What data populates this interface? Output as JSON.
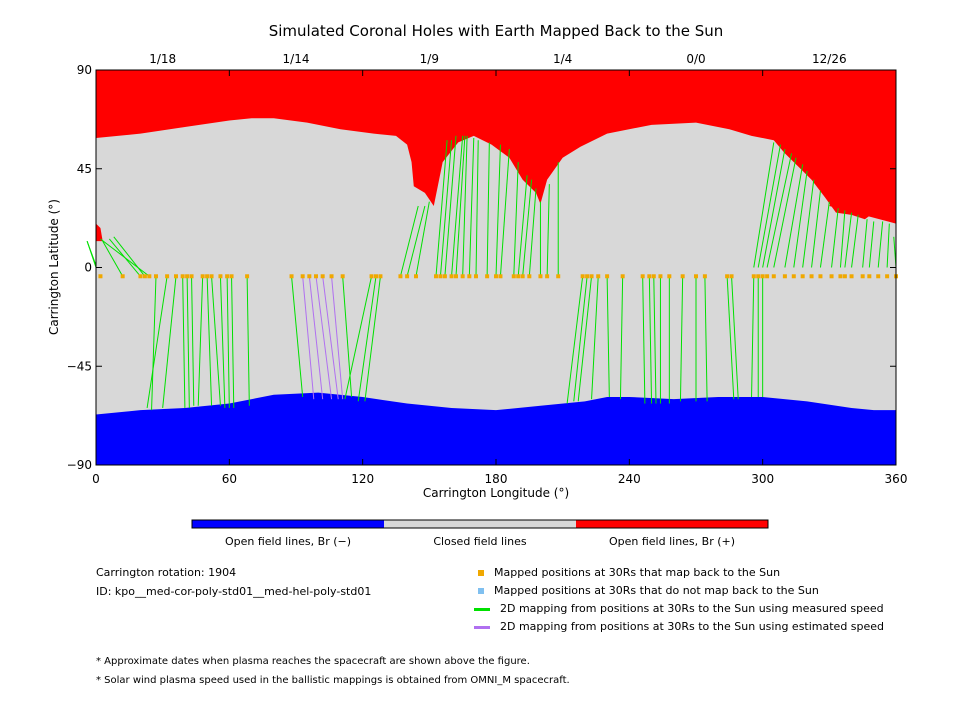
{
  "chart_data": {
    "type": "map",
    "title": "Simulated Coronal Holes with Earth Mapped Back to the Sun",
    "xlabel": "Carrington Longitude (°)",
    "ylabel": "Carrington Latitude (°)",
    "xlim": [
      0,
      360
    ],
    "ylim": [
      -90,
      90
    ],
    "xticks": [
      0,
      60,
      120,
      180,
      240,
      300,
      360
    ],
    "yticks": [
      90,
      45,
      0,
      -45,
      -90
    ],
    "top_date_ticks": [
      {
        "label": "1/18",
        "lon": 30
      },
      {
        "label": "1/14",
        "lon": 90
      },
      {
        "label": "1/9",
        "lon": 150
      },
      {
        "label": "1/4",
        "lon": 210
      },
      {
        "label": "0/0",
        "lon": 270
      },
      {
        "label": "12/26",
        "lon": 330
      }
    ],
    "north_boundary": [
      [
        0,
        59
      ],
      [
        20,
        61
      ],
      [
        40,
        64
      ],
      [
        60,
        67
      ],
      [
        70,
        68
      ],
      [
        80,
        68
      ],
      [
        95,
        66
      ],
      [
        110,
        63
      ],
      [
        125,
        61
      ],
      [
        135,
        60
      ],
      [
        140,
        56
      ],
      [
        142,
        48
      ],
      [
        143,
        37
      ],
      [
        148,
        34
      ],
      [
        152,
        28
      ],
      [
        156,
        48
      ],
      [
        163,
        57
      ],
      [
        170,
        60
      ],
      [
        178,
        56
      ],
      [
        186,
        50
      ],
      [
        192,
        40
      ],
      [
        198,
        34
      ],
      [
        200,
        29
      ],
      [
        203,
        40
      ],
      [
        210,
        50
      ],
      [
        218,
        55
      ],
      [
        230,
        61
      ],
      [
        250,
        65
      ],
      [
        270,
        66
      ],
      [
        285,
        63
      ],
      [
        295,
        60
      ],
      [
        305,
        58
      ],
      [
        310,
        52
      ],
      [
        316,
        46
      ],
      [
        322,
        40
      ],
      [
        328,
        32
      ],
      [
        333,
        25
      ],
      [
        340,
        24
      ],
      [
        346,
        22
      ],
      [
        350,
        25
      ],
      [
        355,
        24
      ],
      [
        360,
        20
      ]
    ],
    "north_boundary_2": [
      [
        335,
        40
      ],
      [
        340,
        50
      ],
      [
        350,
        56
      ],
      [
        360,
        59
      ]
    ],
    "south_boundary": [
      [
        0,
        -67
      ],
      [
        20,
        -65
      ],
      [
        40,
        -64
      ],
      [
        60,
        -62
      ],
      [
        80,
        -58
      ],
      [
        100,
        -57
      ],
      [
        120,
        -59
      ],
      [
        140,
        -62
      ],
      [
        160,
        -64
      ],
      [
        180,
        -65
      ],
      [
        200,
        -63
      ],
      [
        220,
        -61
      ],
      [
        230,
        -59
      ],
      [
        240,
        -59
      ],
      [
        260,
        -60
      ],
      [
        280,
        -59
      ],
      [
        300,
        -59
      ],
      [
        320,
        -61
      ],
      [
        340,
        -64
      ],
      [
        350,
        -65
      ],
      [
        360,
        -65
      ]
    ],
    "red_left_patch": [
      [
        0,
        12
      ],
      [
        0,
        20
      ],
      [
        2,
        18
      ],
      [
        3,
        12
      ]
    ],
    "mapped_points_lon": [
      2,
      12,
      20,
      22,
      24,
      27,
      32,
      36,
      39,
      41,
      43,
      48,
      50,
      52,
      56,
      59,
      61,
      68,
      88,
      93,
      96,
      99,
      102,
      106,
      111,
      124,
      126,
      128,
      137,
      140,
      144,
      153,
      155,
      157,
      160,
      162,
      165,
      168,
      171,
      176,
      180,
      182,
      188,
      190,
      192,
      195,
      200,
      203,
      208,
      219,
      221,
      223,
      226,
      230,
      237,
      246,
      249,
      251,
      254,
      258,
      264,
      270,
      274,
      284,
      286,
      296,
      298,
      300,
      302,
      305,
      310,
      314,
      318,
      322,
      326,
      331,
      335,
      337,
      340,
      345,
      348,
      352,
      356,
      360
    ],
    "mapped_points_lat": -4,
    "mapping_lines_measured": [
      [
        0,
        0,
        -4,
        12
      ],
      [
        0,
        1,
        -4,
        12
      ],
      [
        12,
        -4,
        3,
        12
      ],
      [
        20,
        -4,
        6,
        13
      ],
      [
        22,
        -4,
        8,
        14
      ],
      [
        24,
        -4,
        2,
        13
      ],
      [
        27,
        -4,
        25,
        -65
      ],
      [
        32,
        -4,
        23,
        -64
      ],
      [
        36,
        -4,
        30,
        -64
      ],
      [
        39,
        -4,
        40,
        -64
      ],
      [
        41,
        -4,
        42,
        -64
      ],
      [
        43,
        -4,
        44,
        -63
      ],
      [
        48,
        -4,
        46,
        -63
      ],
      [
        50,
        -4,
        52,
        -63
      ],
      [
        52,
        -4,
        56,
        -63
      ],
      [
        56,
        -4,
        58,
        -64
      ],
      [
        59,
        -4,
        60,
        -64
      ],
      [
        61,
        -4,
        62,
        -64
      ],
      [
        68,
        -4,
        69,
        -63
      ],
      [
        88,
        -4,
        93,
        -59
      ],
      [
        111,
        -4,
        115,
        -59
      ],
      [
        124,
        -4,
        112,
        -60
      ],
      [
        126,
        -4,
        118,
        -61
      ],
      [
        128,
        -4,
        121,
        -61
      ],
      [
        137,
        -4,
        145,
        28
      ],
      [
        140,
        -4,
        148,
        28
      ],
      [
        144,
        -4,
        150,
        30
      ],
      [
        153,
        -4,
        158,
        58
      ],
      [
        155,
        -4,
        160,
        58
      ],
      [
        157,
        -4,
        162,
        60
      ],
      [
        160,
        -4,
        165,
        60
      ],
      [
        162,
        -4,
        166,
        60
      ],
      [
        165,
        -4,
        167,
        60
      ],
      [
        168,
        -4,
        170,
        59
      ],
      [
        171,
        -4,
        172,
        58
      ],
      [
        176,
        -4,
        177,
        57
      ],
      [
        180,
        -4,
        182,
        56
      ],
      [
        182,
        -4,
        186,
        54
      ],
      [
        188,
        -4,
        190,
        48
      ],
      [
        190,
        -4,
        194,
        42
      ],
      [
        192,
        -4,
        196,
        40
      ],
      [
        195,
        -4,
        198,
        36
      ],
      [
        200,
        -4,
        200,
        30
      ],
      [
        203,
        -4,
        204,
        38
      ],
      [
        208,
        -4,
        208,
        48
      ],
      [
        219,
        -4,
        212,
        -62
      ],
      [
        221,
        -4,
        215,
        -61
      ],
      [
        223,
        -4,
        217,
        -61
      ],
      [
        226,
        -4,
        223,
        -60
      ],
      [
        230,
        -4,
        231,
        -59
      ],
      [
        237,
        -4,
        236,
        -60
      ],
      [
        246,
        -4,
        247,
        -62
      ],
      [
        249,
        -4,
        250,
        -62
      ],
      [
        251,
        -4,
        252,
        -62
      ],
      [
        254,
        -4,
        254,
        -62
      ],
      [
        258,
        -4,
        258,
        -62
      ],
      [
        264,
        -4,
        263,
        -61
      ],
      [
        270,
        -4,
        270,
        -61
      ],
      [
        274,
        -4,
        275,
        -61
      ],
      [
        284,
        -4,
        287,
        -60
      ],
      [
        286,
        -4,
        289,
        -60
      ],
      [
        296,
        -4,
        295,
        -59
      ],
      [
        298,
        -4,
        298,
        -59
      ],
      [
        300,
        -4,
        300,
        -59
      ],
      [
        296,
        0,
        305,
        57
      ],
      [
        298,
        0,
        308,
        56
      ],
      [
        300,
        0,
        310,
        54
      ],
      [
        302,
        0,
        313,
        52
      ],
      [
        305,
        0,
        315,
        50
      ],
      [
        310,
        0,
        318,
        47
      ],
      [
        314,
        0,
        320,
        44
      ],
      [
        318,
        0,
        323,
        40
      ],
      [
        322,
        0,
        326,
        35
      ],
      [
        326,
        0,
        330,
        30
      ],
      [
        331,
        0,
        334,
        27
      ],
      [
        335,
        0,
        337,
        26
      ],
      [
        337,
        0,
        340,
        25
      ],
      [
        340,
        0,
        343,
        24
      ],
      [
        345,
        0,
        347,
        22
      ],
      [
        348,
        0,
        350,
        21
      ],
      [
        352,
        0,
        354,
        21
      ],
      [
        356,
        0,
        357,
        20
      ],
      [
        360,
        0,
        359,
        14
      ]
    ],
    "mapping_lines_estimated": [
      [
        93,
        -4,
        98,
        -60
      ],
      [
        96,
        -4,
        102,
        -60
      ],
      [
        99,
        -4,
        106,
        -60
      ],
      [
        102,
        -4,
        109,
        -60
      ],
      [
        106,
        -4,
        111,
        -60
      ]
    ],
    "colorbar_labels": [
      "Open field lines, Br (−)",
      "Closed field lines",
      "Open field lines, Br (+)"
    ],
    "colors": {
      "open_negative": "#0000ff",
      "closed": "#d8d8d8",
      "open_positive": "#ff0000",
      "measured": "#00e000",
      "estimated": "#b070f0",
      "mapped": "#f0a800",
      "unmapped": "#80c0f0"
    }
  },
  "notes": {
    "rotation": "Carrington rotation: 1904",
    "id": "ID: kpo__med-cor-poly-std01__med-hel-poly-std01",
    "footnote1": "* Approximate dates when plasma reaches the spacecraft are shown above the figure.",
    "footnote2": "* Solar wind plasma speed used in the ballistic mappings is obtained from OMNI_M spacecraft."
  },
  "legend": {
    "mapped": "Mapped positions at 30Rs that map back to the Sun",
    "unmapped": "Mapped positions at 30Rs that do not map back to the Sun",
    "measured": "2D mapping from positions at 30Rs to the Sun using measured speed",
    "estimated": "2D mapping from positions at 30Rs to the Sun using estimated speed"
  }
}
